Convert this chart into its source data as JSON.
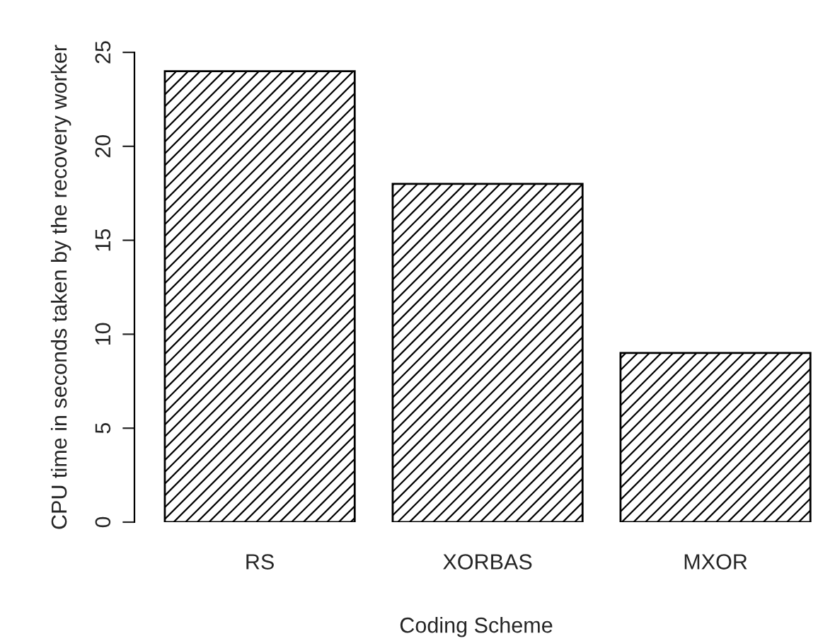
{
  "chart_data": {
    "type": "bar",
    "xlabel": "Coding Scheme",
    "ylabel": "CPU time in seconds taken by the recovery worker",
    "categories": [
      "RS",
      "XORBAS",
      "MXOR"
    ],
    "series": [
      {
        "color": "#000000",
        "values": [
          24,
          18,
          9
        ]
      }
    ],
    "ylim": [
      0,
      25
    ],
    "yticks": [
      0,
      5,
      10,
      15,
      20,
      25
    ],
    "grid": false,
    "legend": false
  }
}
